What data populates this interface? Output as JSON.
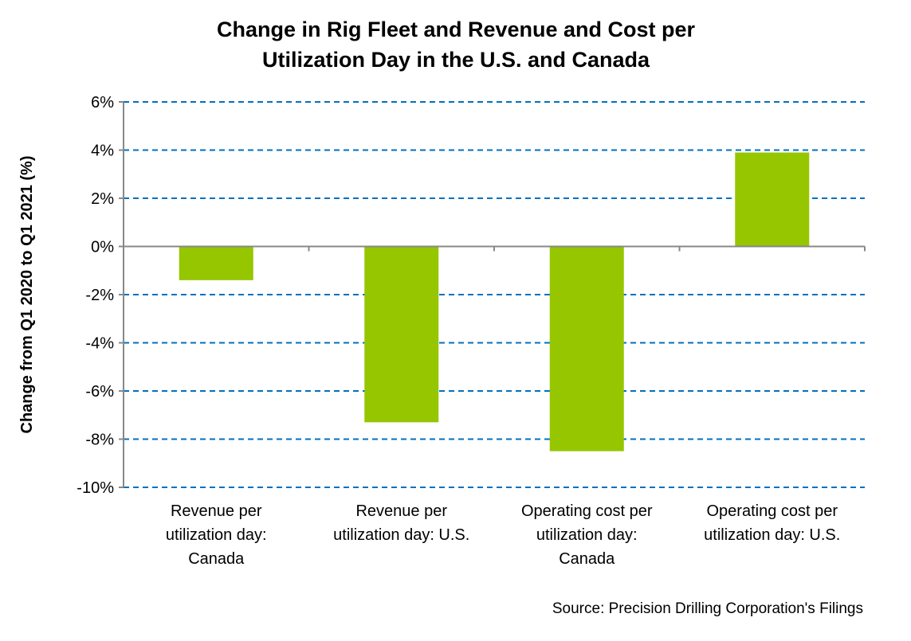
{
  "chart_data": {
    "type": "bar",
    "title": [
      "Change in Rig Fleet and Revenue and Cost per",
      "Utilization Day in the U.S. and Canada"
    ],
    "ylabel": "Change from Q1 2020 to Q1 2021 (%)",
    "xlabel": "",
    "categories": [
      [
        "Revenue per",
        "utilization day:",
        "Canada"
      ],
      [
        "Revenue per",
        "utilization day: U.S."
      ],
      [
        "Operating cost per",
        "utilization day:",
        "Canada"
      ],
      [
        "Operating cost per",
        "utilization day: U.S."
      ]
    ],
    "values": [
      -1.4,
      -7.3,
      -8.5,
      3.9
    ],
    "ylim": [
      -10,
      6
    ],
    "yticks": [
      6,
      4,
      2,
      0,
      -2,
      -4,
      -6,
      -8,
      -10
    ],
    "ytick_labels": [
      "6%",
      "4%",
      "2%",
      "0%",
      "-2%",
      "-4%",
      "-6%",
      "-8%",
      "-10%"
    ],
    "grid": true,
    "bar_color": "#95C600",
    "grid_color": "#0070C0",
    "source": "Source: Precision Drilling Corporation's  Filings"
  }
}
